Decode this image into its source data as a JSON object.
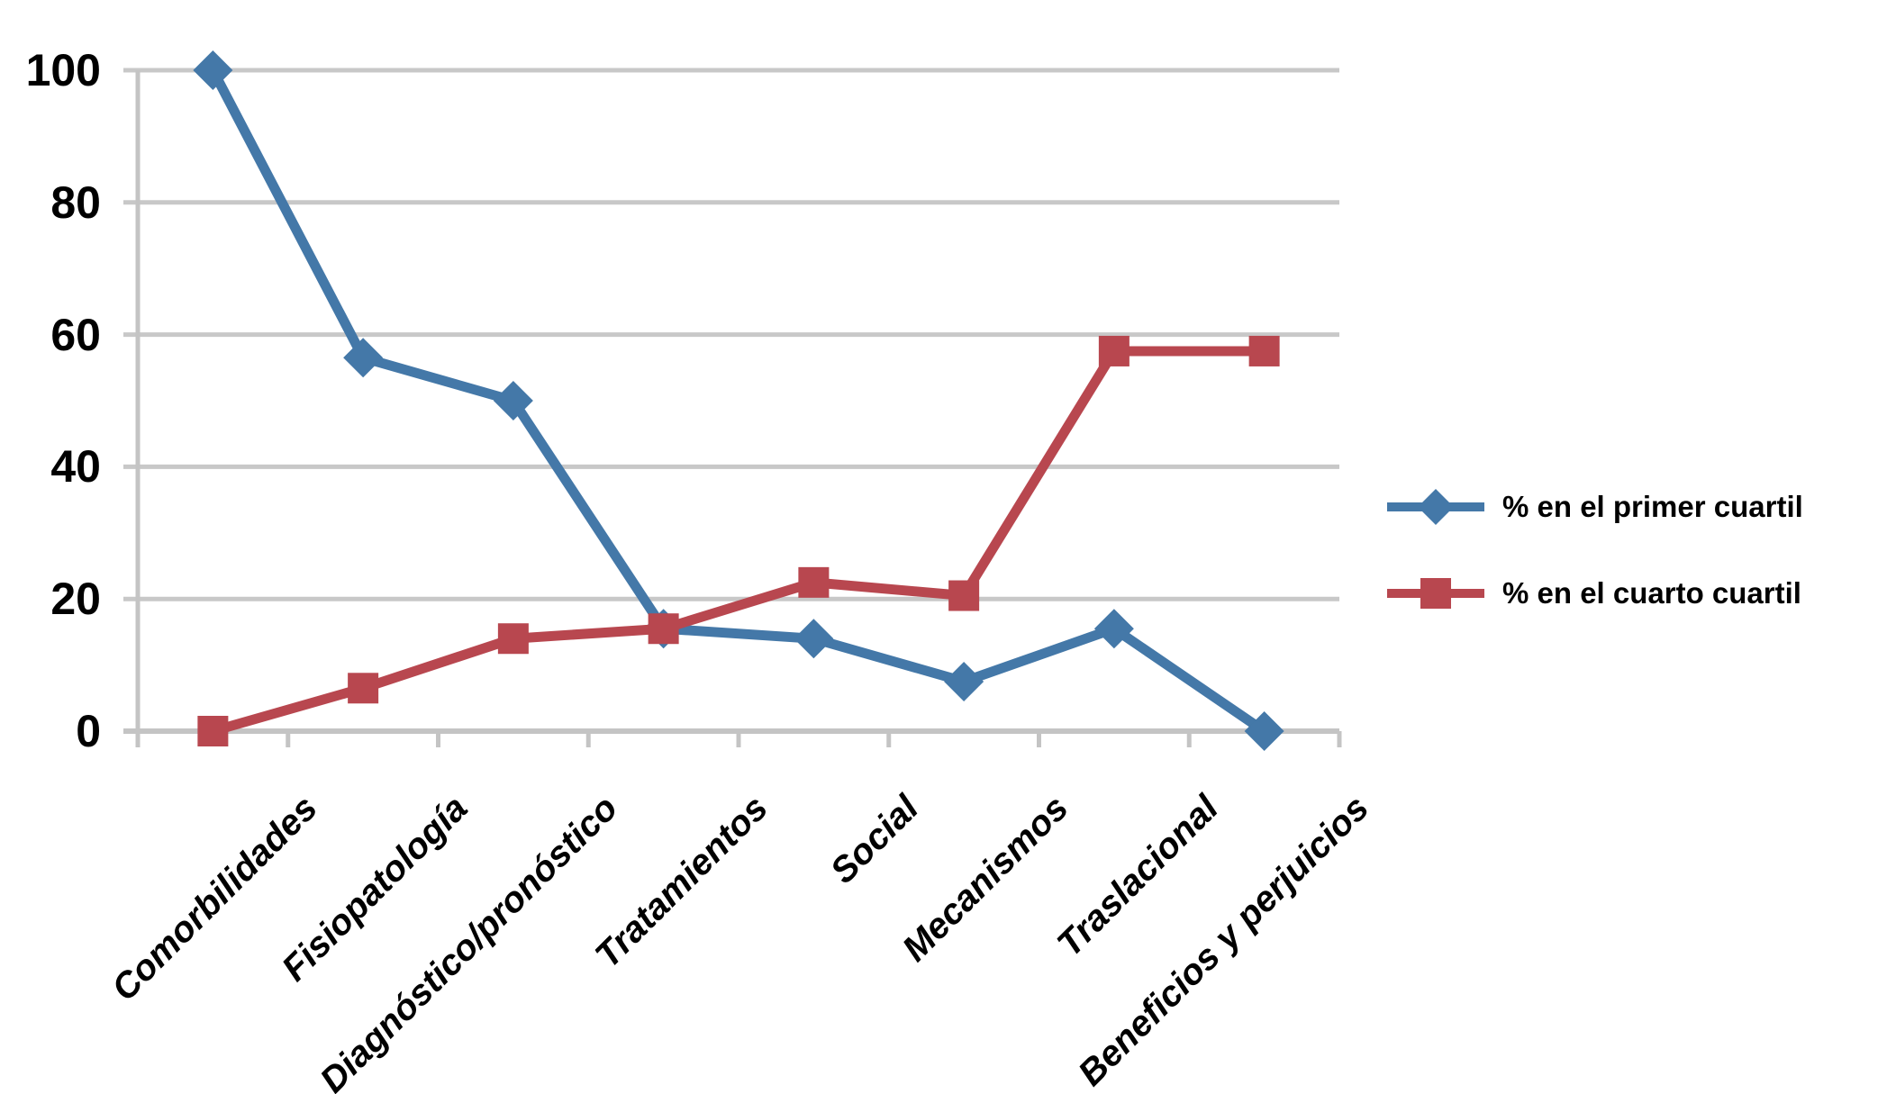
{
  "chart_data": {
    "type": "line",
    "title": "",
    "categories": [
      "Comorbilidades",
      "Fisiopatología",
      "Diagnóstico/pronóstico",
      "Tratamientos",
      "Social",
      "Mecanismos",
      "Traslacional",
      "Beneficios y perjuicios"
    ],
    "series": [
      {
        "name": "% en el primer cuartil",
        "marker": "diamond",
        "color": "#4478A8",
        "values": [
          100,
          56.5,
          50,
          15.5,
          14,
          7.5,
          15.5,
          0
        ]
      },
      {
        "name": "% en el cuarto cuartil",
        "marker": "square",
        "color": "#B8474F",
        "values": [
          0,
          6.5,
          14,
          15.5,
          22.5,
          20.5,
          57.5,
          57.5
        ]
      }
    ],
    "xlabel": "",
    "ylabel": "",
    "ylim": [
      0,
      100
    ],
    "yticks": [
      0,
      20,
      40,
      60,
      80,
      100
    ],
    "grid": true,
    "legend_position": "right-middle"
  },
  "styles": {
    "gridline_color": "#C8C8C8",
    "axis_color": "#C4C4C4",
    "text_color": "#000000",
    "background_color": "#FFFFFF"
  }
}
